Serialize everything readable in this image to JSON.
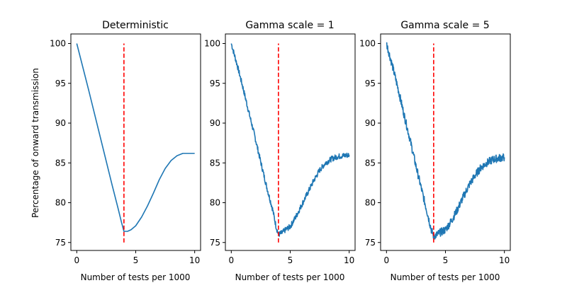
{
  "chart_data": [
    {
      "type": "line",
      "title": "Deterministic",
      "xlabel": "Number of tests per 1000",
      "ylabel": "Percentage of onward transmission",
      "xlim": [
        -0.5,
        10.5
      ],
      "ylim": [
        74.0,
        101.2
      ],
      "x_ticks": [
        0,
        5,
        10
      ],
      "y_ticks": [
        75,
        80,
        85,
        90,
        95,
        100
      ],
      "grid": false,
      "series": [
        {
          "color": "#1f77b4",
          "noise": 0,
          "x": [
            0,
            0.5,
            1,
            1.5,
            2,
            2.5,
            3,
            3.5,
            3.8,
            4.0,
            4.3,
            4.6,
            5.0,
            5.5,
            6.0,
            6.5,
            7.0,
            7.5,
            8.0,
            8.5,
            9.0,
            9.5,
            10.0
          ],
          "y": [
            100,
            97.1,
            94.2,
            91.2,
            88.2,
            85.2,
            82.2,
            79.3,
            77.5,
            76.4,
            76.4,
            76.6,
            77.1,
            78.2,
            79.6,
            81.2,
            82.9,
            84.3,
            85.3,
            85.9,
            86.2,
            86.2,
            86.2
          ]
        }
      ],
      "vline": {
        "x": 4,
        "y0": 75,
        "y1": 100,
        "color": "#ff0000",
        "style": "dashed"
      }
    },
    {
      "type": "line",
      "title": "Gamma scale = 1",
      "xlabel": "Number of tests per 1000",
      "ylabel": "",
      "xlim": [
        -0.5,
        10.5
      ],
      "ylim": [
        74.0,
        101.2
      ],
      "x_ticks": [
        0,
        5,
        10
      ],
      "y_ticks": [
        75,
        80,
        85,
        90,
        95,
        100
      ],
      "grid": false,
      "series": [
        {
          "color": "#1f77b4",
          "noise": 0.35,
          "x": [
            0,
            0.5,
            1,
            1.5,
            2,
            2.5,
            3,
            3.5,
            3.8,
            4.0,
            4.3,
            4.6,
            5.0,
            5.5,
            6.0,
            6.5,
            7.0,
            7.5,
            8.0,
            8.5,
            9.0,
            9.5,
            10.0
          ],
          "y": [
            100,
            97.3,
            94.4,
            91.3,
            88.3,
            85.1,
            82.0,
            79.2,
            77.0,
            76.0,
            76.2,
            76.6,
            77.0,
            78.3,
            79.8,
            81.3,
            82.8,
            84.1,
            85.0,
            85.5,
            85.8,
            85.9,
            86.0
          ]
        }
      ],
      "vline": {
        "x": 4,
        "y0": 75,
        "y1": 100,
        "color": "#ff0000",
        "style": "dashed"
      }
    },
    {
      "type": "line",
      "title": "Gamma scale = 5",
      "xlabel": "Number of tests per 1000",
      "ylabel": "",
      "xlim": [
        -0.5,
        10.5
      ],
      "ylim": [
        74.0,
        101.2
      ],
      "x_ticks": [
        0,
        5,
        10
      ],
      "y_ticks": [
        75,
        80,
        85,
        90,
        95,
        100
      ],
      "grid": false,
      "series": [
        {
          "color": "#1f77b4",
          "noise": 0.5,
          "x": [
            0,
            0.5,
            1,
            1.5,
            2,
            2.5,
            3,
            3.5,
            3.8,
            4.0,
            4.3,
            4.6,
            5.0,
            5.5,
            6.0,
            6.5,
            7.0,
            7.5,
            8.0,
            8.5,
            9.0,
            9.5,
            10.0
          ],
          "y": [
            100,
            97.2,
            94.2,
            91.0,
            87.9,
            84.6,
            81.5,
            78.5,
            76.6,
            75.8,
            76.0,
            76.3,
            76.6,
            77.7,
            79.1,
            80.7,
            82.2,
            83.4,
            84.4,
            85.0,
            85.4,
            85.6,
            85.7
          ]
        }
      ],
      "vline": {
        "x": 4,
        "y0": 75,
        "y1": 100,
        "color": "#ff0000",
        "style": "dashed"
      }
    }
  ]
}
